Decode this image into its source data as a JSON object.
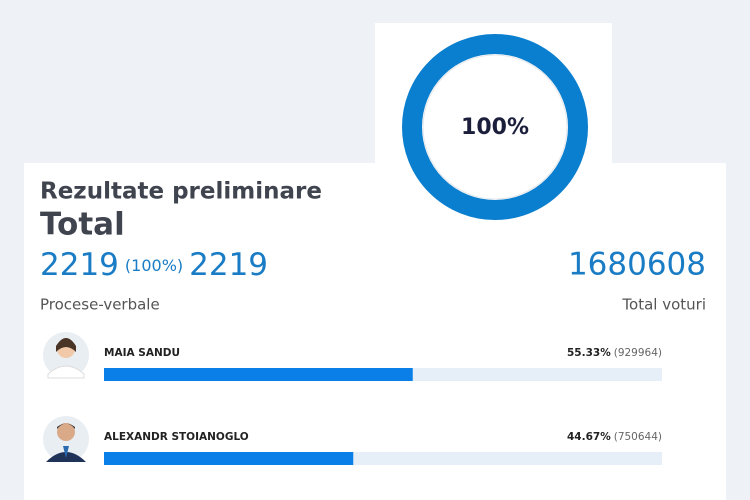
{
  "progress": {
    "value": 100,
    "label": "100%"
  },
  "header": {
    "title": "Rezultate preliminare",
    "subtitle": "Total"
  },
  "stats": {
    "processed": 2219,
    "processed_share": {
      "value": 100,
      "label": "(100%)"
    },
    "total_reports": 2219,
    "reports_label": "Procese-verbale",
    "total_votes": 1680608,
    "votes_label": "Total voturi"
  },
  "candidates": [
    {
      "name": "MAIA SANDU",
      "percent": {
        "value": 55.33,
        "label": "55.33%"
      },
      "votes": {
        "value": 929964,
        "label": "(929964)"
      }
    },
    {
      "name": "ALEXANDR STOIANOGLO",
      "percent": {
        "value": 44.67,
        "label": "44.67%"
      },
      "votes": {
        "value": 750644,
        "label": "(750644)"
      }
    }
  ]
}
